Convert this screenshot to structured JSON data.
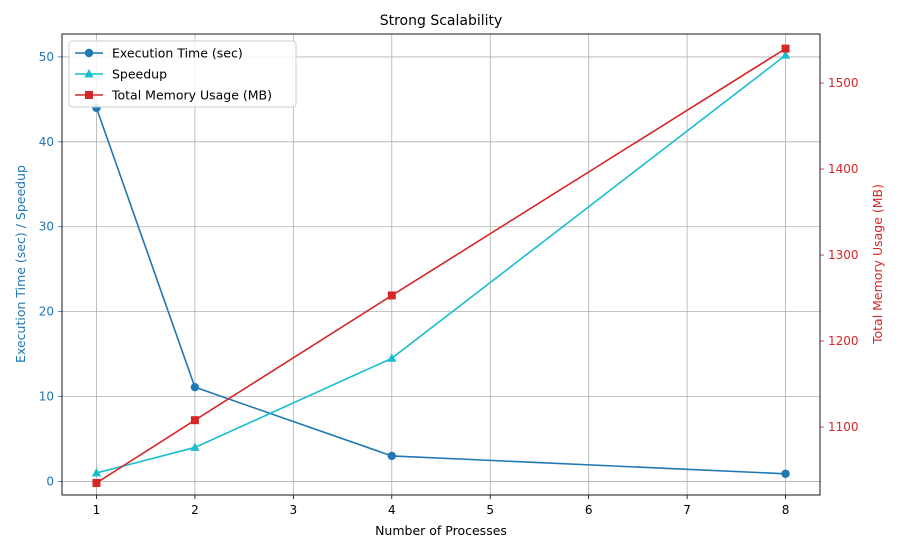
{
  "chart_data": {
    "type": "line",
    "title": "Strong Scalability",
    "xlabel": "Number of Processes",
    "ylabel_left": "Execution Time (sec) / Speedup",
    "ylabel_right": "Total Memory Usage (MB)",
    "x": [
      1,
      2,
      4,
      8
    ],
    "xlim": [
      0.65,
      8.35
    ],
    "ylim_left": [
      -1.6,
      52.7
    ],
    "ylim_right": [
      1021,
      1557
    ],
    "xticks": [
      1,
      2,
      3,
      4,
      5,
      6,
      7,
      8
    ],
    "yticks_left": [
      0,
      10,
      20,
      30,
      40,
      50
    ],
    "yticks_right": [
      1100,
      1200,
      1300,
      1400,
      1500
    ],
    "grid": true,
    "legend_position": "upper-left",
    "colors": {
      "left_axis": "#1f77b4",
      "right_axis": "#d62728"
    },
    "series": [
      {
        "name": "Execution Time (sec)",
        "axis": "left",
        "color": "#1f77b4",
        "marker": "circle",
        "values": [
          44.0,
          11.1,
          3.0,
          0.9
        ]
      },
      {
        "name": "Speedup",
        "axis": "left",
        "color": "#17becf",
        "marker": "triangle",
        "values": [
          1.0,
          4.0,
          14.5,
          50.2
        ]
      },
      {
        "name": "Total Memory Usage (MB)",
        "axis": "right",
        "color": "#d62728",
        "marker": "square",
        "values": [
          1035,
          1108,
          1253,
          1540
        ]
      }
    ]
  }
}
